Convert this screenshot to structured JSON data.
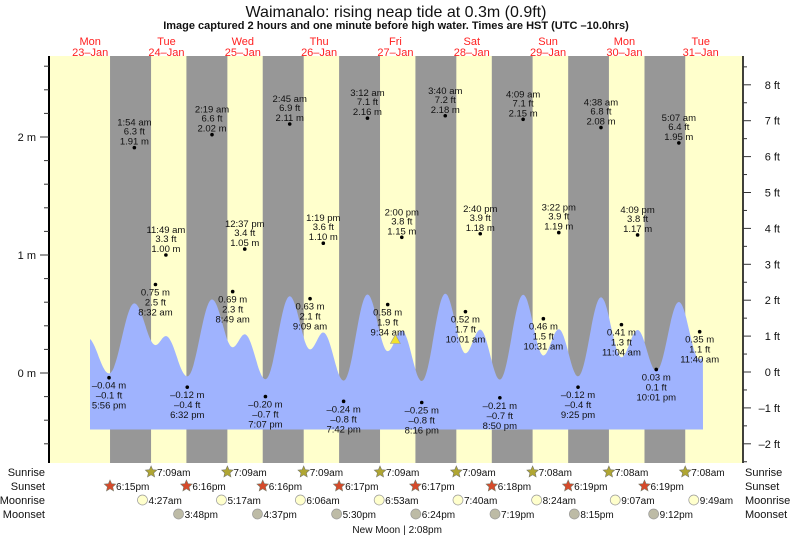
{
  "title": "Waimanalo: rising  neap tide at 0.3m (0.9ft)",
  "subtitle": "Image captured 2 hours and one minute before high water. Times are HST (UTC –10.0hrs)",
  "colors": {
    "day": "#ffffcc",
    "night": "#979797",
    "water": "#9fb3fe",
    "day_label": "#ff2020",
    "sunrise_star": "#b0a632",
    "sunset_star": "#d64a2a",
    "moonrise": "#ffffcc",
    "moonset": "#bdbba6",
    "current_marker": "#f2e22a"
  },
  "chart_data": {
    "type": "area",
    "title": "Waimanalo: rising  neap tide at 0.3m (0.9ft)",
    "left_axis": {
      "unit": "m",
      "ticks": [
        "0 m",
        "1 m",
        "2 m"
      ]
    },
    "right_axis": {
      "unit": "ft",
      "ticks": [
        "–2 ft",
        "–1 ft",
        "0 ft",
        "1 ft",
        "2 ft",
        "3 ft",
        "4 ft",
        "5 ft",
        "6 ft",
        "7 ft",
        "8 ft"
      ]
    },
    "days": [
      {
        "dow": "Mon",
        "date": "23–Jan"
      },
      {
        "dow": "Tue",
        "date": "24–Jan"
      },
      {
        "dow": "Wed",
        "date": "25–Jan"
      },
      {
        "dow": "Thu",
        "date": "26–Jan"
      },
      {
        "dow": "Fri",
        "date": "27–Jan"
      },
      {
        "dow": "Sat",
        "date": "28–Jan"
      },
      {
        "dow": "Sun",
        "date": "29–Jan"
      },
      {
        "dow": "Mon",
        "date": "30–Jan"
      },
      {
        "dow": "Tue",
        "date": "31–Jan"
      }
    ],
    "extremes": [
      {
        "day": 0,
        "time": "5:56 pm",
        "m": "–0.04 m",
        "ft": "–0.1 ft",
        "v": -0.04,
        "type": "low"
      },
      {
        "day": 1,
        "time": "1:54 am",
        "m": "1.91 m",
        "ft": "6.3 ft",
        "v": 1.91,
        "type": "high"
      },
      {
        "day": 1,
        "time": "8:32 am",
        "m": "0.75 m",
        "ft": "2.5 ft",
        "v": 0.75,
        "type": "midlow"
      },
      {
        "day": 1,
        "time": "11:49 am",
        "m": "1.00 m",
        "ft": "3.3 ft",
        "v": 1.0,
        "type": "midhigh"
      },
      {
        "day": 1,
        "time": "6:32 pm",
        "m": "–0.12 m",
        "ft": "–0.4 ft",
        "v": -0.12,
        "type": "low"
      },
      {
        "day": 2,
        "time": "2:19 am",
        "m": "2.02 m",
        "ft": "6.6 ft",
        "v": 2.02,
        "type": "high"
      },
      {
        "day": 2,
        "time": "8:49 am",
        "m": "0.69 m",
        "ft": "2.3 ft",
        "v": 0.69,
        "type": "midlow"
      },
      {
        "day": 2,
        "time": "12:37 pm",
        "m": "1.05 m",
        "ft": "3.4 ft",
        "v": 1.05,
        "type": "midhigh"
      },
      {
        "day": 2,
        "time": "7:07 pm",
        "m": "–0.20 m",
        "ft": "–0.7 ft",
        "v": -0.2,
        "type": "low"
      },
      {
        "day": 3,
        "time": "2:45 am",
        "m": "2.11 m",
        "ft": "6.9 ft",
        "v": 2.11,
        "type": "high"
      },
      {
        "day": 3,
        "time": "9:09 am",
        "m": "0.63 m",
        "ft": "2.1 ft",
        "v": 0.63,
        "type": "midlow"
      },
      {
        "day": 3,
        "time": "1:19 pm",
        "m": "1.10 m",
        "ft": "3.6 ft",
        "v": 1.1,
        "type": "midhigh"
      },
      {
        "day": 3,
        "time": "7:42 pm",
        "m": "–0.24 m",
        "ft": "–0.8 ft",
        "v": -0.24,
        "type": "low"
      },
      {
        "day": 4,
        "time": "3:12 am",
        "m": "2.16 m",
        "ft": "7.1 ft",
        "v": 2.16,
        "type": "high"
      },
      {
        "day": 4,
        "time": "9:34 am",
        "m": "0.58 m",
        "ft": "1.9 ft",
        "v": 0.58,
        "type": "midlow"
      },
      {
        "day": 4,
        "time": "2:00 pm",
        "m": "1.15 m",
        "ft": "3.8 ft",
        "v": 1.15,
        "type": "midhigh"
      },
      {
        "day": 4,
        "time": "8:16 pm",
        "m": "–0.25 m",
        "ft": "–0.8 ft",
        "v": -0.25,
        "type": "low"
      },
      {
        "day": 5,
        "time": "3:40 am",
        "m": "2.18 m",
        "ft": "7.2 ft",
        "v": 2.18,
        "type": "high"
      },
      {
        "day": 5,
        "time": "10:01 am",
        "m": "0.52 m",
        "ft": "1.7 ft",
        "v": 0.52,
        "type": "midlow"
      },
      {
        "day": 5,
        "time": "2:40 pm",
        "m": "1.18 m",
        "ft": "3.9 ft",
        "v": 1.18,
        "type": "midhigh"
      },
      {
        "day": 5,
        "time": "8:50 pm",
        "m": "–0.21 m",
        "ft": "–0.7 ft",
        "v": -0.21,
        "type": "low"
      },
      {
        "day": 6,
        "time": "4:09 am",
        "m": "2.15 m",
        "ft": "7.1 ft",
        "v": 2.15,
        "type": "high"
      },
      {
        "day": 6,
        "time": "10:31 am",
        "m": "0.46 m",
        "ft": "1.5 ft",
        "v": 0.46,
        "type": "midlow"
      },
      {
        "day": 6,
        "time": "3:22 pm",
        "m": "1.19 m",
        "ft": "3.9 ft",
        "v": 1.19,
        "type": "midhigh"
      },
      {
        "day": 6,
        "time": "9:25 pm",
        "m": "–0.12 m",
        "ft": "–0.4 ft",
        "v": -0.12,
        "type": "low"
      },
      {
        "day": 7,
        "time": "4:38 am",
        "m": "2.08 m",
        "ft": "6.8 ft",
        "v": 2.08,
        "type": "high"
      },
      {
        "day": 7,
        "time": "11:04 am",
        "m": "0.41 m",
        "ft": "1.3 ft",
        "v": 0.41,
        "type": "midlow"
      },
      {
        "day": 7,
        "time": "4:09 pm",
        "m": "1.17 m",
        "ft": "3.8 ft",
        "v": 1.17,
        "type": "midhigh"
      },
      {
        "day": 7,
        "time": "10:01 pm",
        "m": "0.03 m",
        "ft": "0.1 ft",
        "v": 0.03,
        "type": "low"
      },
      {
        "day": 8,
        "time": "5:07 am",
        "m": "1.95 m",
        "ft": "6.4 ft",
        "v": 1.95,
        "type": "high"
      },
      {
        "day": 8,
        "time": "11:40 am",
        "m": "0.35 m",
        "ft": "1.1 ft",
        "v": 0.35,
        "type": "midlow"
      }
    ],
    "current": {
      "level_m": 0.3,
      "level_ft": 0.9,
      "day": 4,
      "time": "11:59 am"
    }
  },
  "rows": {
    "sunrise": {
      "label": "Sunrise",
      "events": [
        {
          "day": 1,
          "time": "7:09am"
        },
        {
          "day": 2,
          "time": "7:09am"
        },
        {
          "day": 3,
          "time": "7:09am"
        },
        {
          "day": 4,
          "time": "7:09am"
        },
        {
          "day": 5,
          "time": "7:09am"
        },
        {
          "day": 6,
          "time": "7:08am"
        },
        {
          "day": 7,
          "time": "7:08am"
        },
        {
          "day": 8,
          "time": "7:08am"
        }
      ]
    },
    "sunset": {
      "label": "Sunset",
      "events": [
        {
          "day": 0,
          "time": "6:15pm"
        },
        {
          "day": 1,
          "time": "6:16pm"
        },
        {
          "day": 2,
          "time": "6:16pm"
        },
        {
          "day": 3,
          "time": "6:17pm"
        },
        {
          "day": 4,
          "time": "6:17pm"
        },
        {
          "day": 5,
          "time": "6:18pm"
        },
        {
          "day": 6,
          "time": "6:19pm"
        },
        {
          "day": 7,
          "time": "6:19pm"
        }
      ]
    },
    "moonrise": {
      "label": "Moonrise",
      "events": [
        {
          "day": 1,
          "time": "4:27am"
        },
        {
          "day": 2,
          "time": "5:17am"
        },
        {
          "day": 3,
          "time": "6:06am"
        },
        {
          "day": 4,
          "time": "6:53am"
        },
        {
          "day": 5,
          "time": "7:40am"
        },
        {
          "day": 6,
          "time": "8:24am"
        },
        {
          "day": 7,
          "time": "9:07am"
        },
        {
          "day": 8,
          "time": "9:49am"
        }
      ]
    },
    "moonset": {
      "label": "Moonset",
      "events": [
        {
          "day": 1,
          "time": "3:48pm"
        },
        {
          "day": 2,
          "time": "4:37pm"
        },
        {
          "day": 3,
          "time": "5:30pm"
        },
        {
          "day": 4,
          "time": "6:24pm"
        },
        {
          "day": 5,
          "time": "7:19pm"
        },
        {
          "day": 6,
          "time": "8:15pm"
        },
        {
          "day": 7,
          "time": "9:12pm"
        }
      ]
    }
  },
  "moon_phase": {
    "label": "New Moon",
    "time": "2:08pm",
    "day": 4
  }
}
